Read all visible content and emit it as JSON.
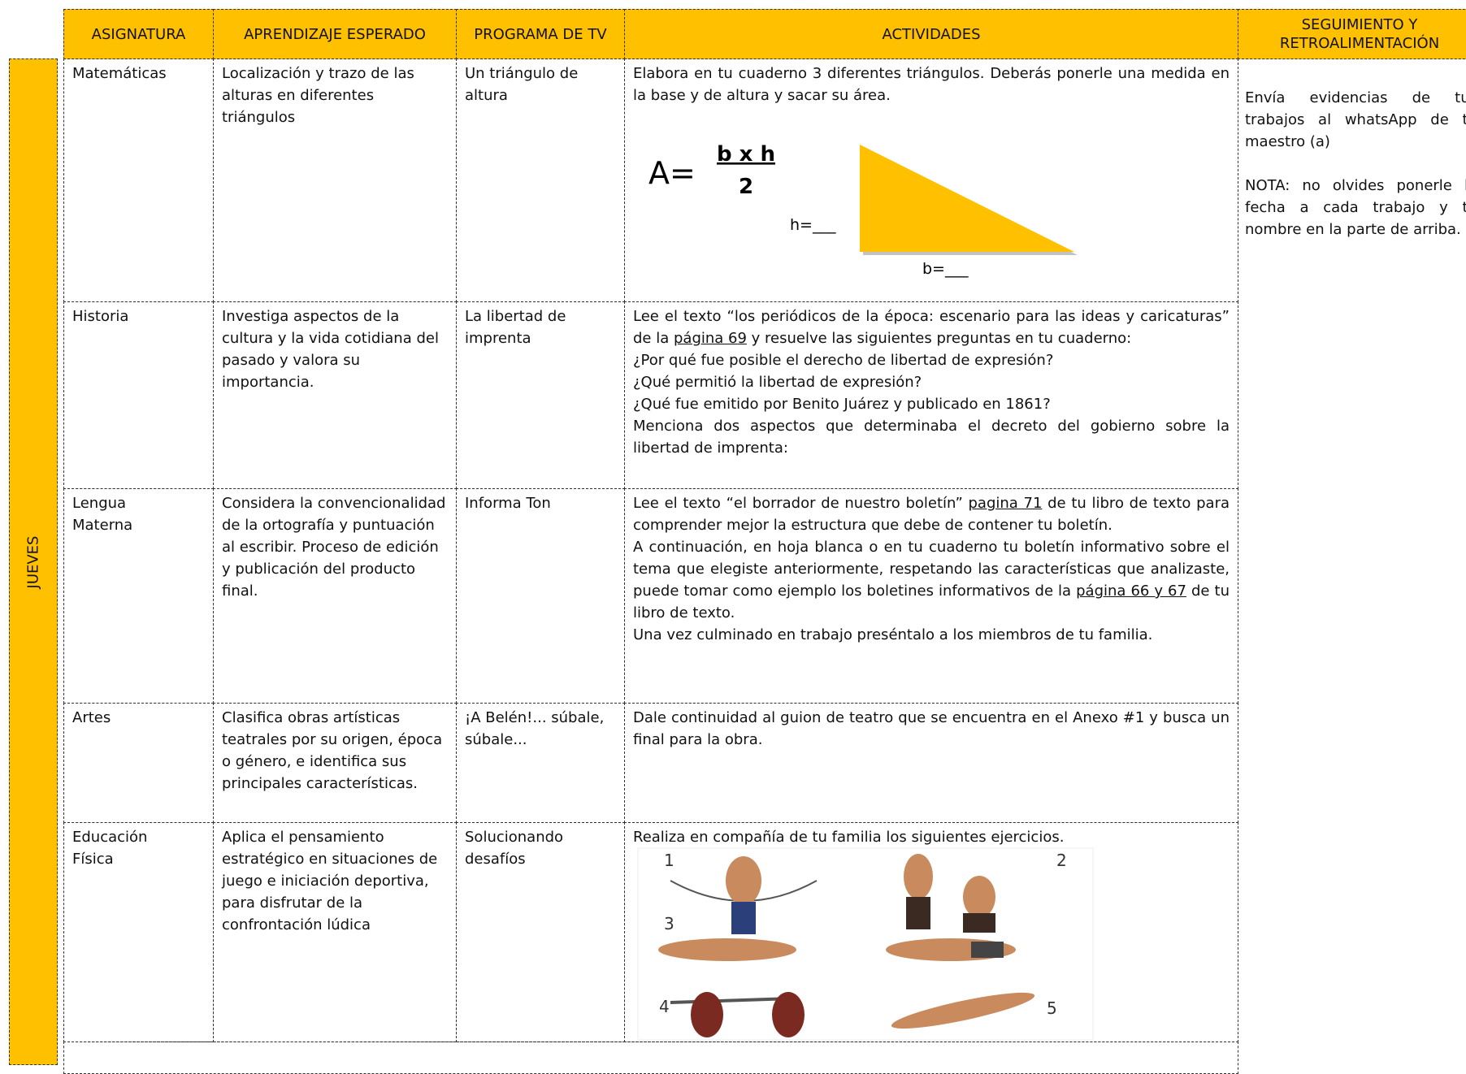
{
  "header": {
    "columns": [
      "ASIGNATURA",
      "APRENDIZAJE ESPERADO",
      "PROGRAMA DE TV",
      "ACTIVIDADES",
      "SEGUIMIENTO Y RETROALIMENTACIÓN"
    ]
  },
  "day": "JUEVES",
  "rows": [
    {
      "subject": "Matemáticas",
      "learning": "Localización y trazo de las alturas en diferentes triángulos",
      "program": "Un triángulo de altura",
      "activities": [
        [
          "Elabora en tu cuaderno 3 diferentes triángulos. Deberás ponerle una medida en la base y de altura y sacar su área."
        ]
      ]
    },
    {
      "subject": "Historia",
      "learning": "Investiga aspectos de la cultura y la vida cotidiana del pasado y valora su importancia.",
      "program": "La libertad de imprenta",
      "activities": [
        [
          "Lee el texto “los periódicos de la época: escenario para las ideas y caricaturas” de la ",
          "página 69",
          " y resuelve las siguientes preguntas en tu cuaderno:"
        ],
        [
          "¿Por qué fue posible el derecho de libertad de expresión?"
        ],
        [
          "¿Qué permitió la libertad de expresión?"
        ],
        [
          "¿Qué fue emitido por Benito Juárez y publicado en 1861?"
        ],
        [
          "Menciona dos aspectos que determinaba el decreto del gobierno sobre la libertad de imprenta:"
        ]
      ]
    },
    {
      "subject": "Lengua Materna",
      "learning": "Considera la convencionalidad de la ortografía y puntuación al escribir. Proceso de edición y publicación del producto final.",
      "program": "Informa Ton",
      "activities": [
        [
          "Lee el texto “el borrador de nuestro boletín” ",
          "pagina 71",
          " de tu libro de texto para comprender mejor la estructura que debe de contener tu boletín."
        ],
        [
          "A continuación, en hoja blanca o en tu cuaderno tu boletín informativo sobre el tema que elegiste anteriormente, respetando las características que analizaste, puede tomar como ejemplo los boletines informativos de la ",
          "página 66 y 67",
          " de tu libro de texto."
        ],
        [
          "Una vez culminado en trabajo preséntalo a los miembros de tu familia."
        ]
      ]
    },
    {
      "subject": "Artes",
      "learning": "Clasifica obras artísticas teatrales por su origen, época o género, e identifica sus principales características.",
      "program": "¡A Belén!... súbale, súbale...",
      "activities": [
        [
          "Dale continuidad al guion de teatro que se encuentra en el Anexo #1 y busca un final para la obra."
        ]
      ]
    },
    {
      "subject": "Educación Física",
      "learning": "Aplica el pensamiento estratégico en situaciones de juego e iniciación deportiva, para disfrutar de la confrontación lúdica",
      "program": "Solucionando desafíos",
      "activities": [
        [
          "Realiza en compañía de tu familia los siguientes ejercicios."
        ]
      ]
    }
  ],
  "formula": {
    "lhs": "A=",
    "numerator": "b x h",
    "denominator": "2",
    "height_label": "h=___",
    "base_label": "b=___"
  },
  "exercise_labels": [
    "1",
    "2",
    "3",
    "4",
    "5"
  ],
  "feedback": [
    "Envía evidencias de tus trabajos al whatsApp de tu maestro (a)",
    "NOTA: no olvides ponerle la fecha a cada trabajo y tú nombre en la parte de arriba."
  ]
}
